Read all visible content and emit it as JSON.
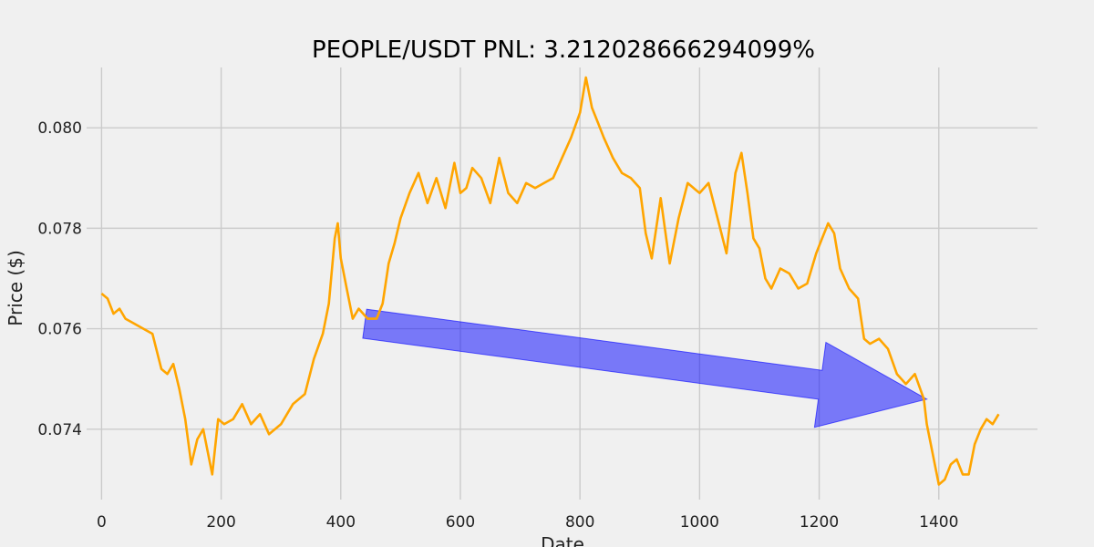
{
  "chart_data": {
    "type": "line",
    "title": "PEOPLE/USDT  PNL: 3.212028666294099%",
    "xlabel": "Date",
    "ylabel": "Price ($)",
    "xlim": [
      -25,
      1565
    ],
    "ylim": [
      0.0726,
      0.0812
    ],
    "grid": true,
    "xticks": [
      0,
      200,
      400,
      600,
      800,
      1000,
      1200,
      1400
    ],
    "xtick_labels": [
      "0",
      "200",
      "400",
      "600",
      "800",
      "1000",
      "1200",
      "1400"
    ],
    "yticks": [
      0.074,
      0.076,
      0.078,
      0.08
    ],
    "ytick_labels": [
      "0.074",
      "0.076",
      "0.078",
      "0.080"
    ],
    "series": [
      {
        "color": "#ffa500",
        "x": [
          0,
          10,
          20,
          30,
          40,
          55,
          70,
          85,
          100,
          110,
          120,
          130,
          140,
          150,
          160,
          170,
          185,
          195,
          205,
          220,
          235,
          250,
          265,
          280,
          300,
          320,
          340,
          355,
          370,
          380,
          390,
          395,
          400,
          410,
          420,
          430,
          445,
          460,
          470,
          480,
          490,
          500,
          515,
          530,
          545,
          560,
          575,
          590,
          600,
          610,
          620,
          635,
          650,
          665,
          680,
          695,
          710,
          725,
          740,
          755,
          770,
          785,
          800,
          810,
          820,
          830,
          840,
          855,
          870,
          885,
          900,
          910,
          920,
          935,
          950,
          965,
          980,
          990,
          1000,
          1015,
          1030,
          1045,
          1060,
          1070,
          1080,
          1090,
          1100,
          1110,
          1120,
          1135,
          1150,
          1165,
          1180,
          1195,
          1205,
          1215,
          1225,
          1235,
          1250,
          1265,
          1275,
          1285,
          1300,
          1315,
          1330,
          1345,
          1360,
          1375,
          1380,
          1390,
          1400,
          1410,
          1420,
          1430,
          1440,
          1450,
          1460,
          1470,
          1480,
          1490,
          1500
        ],
        "y": [
          0.0767,
          0.0766,
          0.0763,
          0.0764,
          0.0762,
          0.0761,
          0.076,
          0.0759,
          0.0752,
          0.0751,
          0.0753,
          0.0748,
          0.0742,
          0.0733,
          0.0738,
          0.074,
          0.0731,
          0.0742,
          0.0741,
          0.0742,
          0.0745,
          0.0741,
          0.0743,
          0.0739,
          0.0741,
          0.0745,
          0.0747,
          0.0754,
          0.0759,
          0.0765,
          0.0778,
          0.0781,
          0.0774,
          0.0768,
          0.0762,
          0.0764,
          0.0762,
          0.0762,
          0.0765,
          0.0773,
          0.0777,
          0.0782,
          0.0787,
          0.0791,
          0.0785,
          0.079,
          0.0784,
          0.0793,
          0.0787,
          0.0788,
          0.0792,
          0.079,
          0.0785,
          0.0794,
          0.0787,
          0.0785,
          0.0789,
          0.0788,
          0.0789,
          0.079,
          0.0794,
          0.0798,
          0.0803,
          0.081,
          0.0804,
          0.0801,
          0.0798,
          0.0794,
          0.0791,
          0.079,
          0.0788,
          0.0779,
          0.0774,
          0.0786,
          0.0773,
          0.0782,
          0.0789,
          0.0788,
          0.0787,
          0.0789,
          0.0782,
          0.0775,
          0.0791,
          0.0795,
          0.0787,
          0.0778,
          0.0776,
          0.077,
          0.0768,
          0.0772,
          0.0771,
          0.0768,
          0.0769,
          0.0775,
          0.0778,
          0.0781,
          0.0779,
          0.0772,
          0.0768,
          0.0766,
          0.0758,
          0.0757,
          0.0758,
          0.0756,
          0.0751,
          0.0749,
          0.0751,
          0.0746,
          0.0741,
          0.0735,
          0.0729,
          0.073,
          0.0733,
          0.0734,
          0.0731,
          0.0731,
          0.0737,
          0.074,
          0.0742,
          0.0741,
          0.0743
        ]
      }
    ],
    "annotation": {
      "type": "arrow",
      "from": [
        440,
        0.0761
      ],
      "to": [
        1380,
        0.0746
      ],
      "color": "#0000ff",
      "opacity": 0.5
    }
  }
}
